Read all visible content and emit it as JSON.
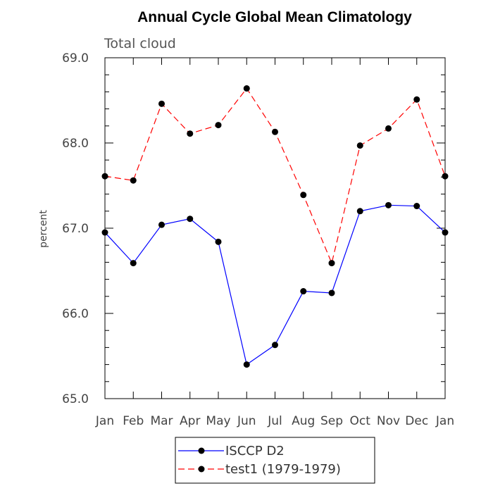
{
  "chart_data": {
    "type": "line",
    "title": "Annual Cycle Global Mean Climatology",
    "subtitle": "Total cloud",
    "xlabel": "",
    "ylabel": "percent",
    "categories": [
      "Jan",
      "Feb",
      "Mar",
      "Apr",
      "May",
      "Jun",
      "Jul",
      "Aug",
      "Sep",
      "Oct",
      "Nov",
      "Dec",
      "Jan"
    ],
    "ylim": [
      65.0,
      69.0
    ],
    "yticks": [
      "65.0",
      "66.0",
      "67.0",
      "68.0",
      "69.0"
    ],
    "grid": false,
    "legend_position": "bottom-center",
    "series": [
      {
        "name": "ISCCP D2",
        "color": "#0000ff",
        "line_style": "solid",
        "marker": "circle",
        "values": [
          66.95,
          66.59,
          67.04,
          67.11,
          66.84,
          65.4,
          65.63,
          66.26,
          66.24,
          67.2,
          67.27,
          67.26,
          66.95
        ]
      },
      {
        "name": "test1 (1979-1979)",
        "color": "#ff0000",
        "line_style": "dashed",
        "marker": "circle",
        "values": [
          67.61,
          67.56,
          68.46,
          68.11,
          68.21,
          68.64,
          68.13,
          67.39,
          66.59,
          67.97,
          68.17,
          68.51,
          67.61
        ]
      }
    ]
  }
}
